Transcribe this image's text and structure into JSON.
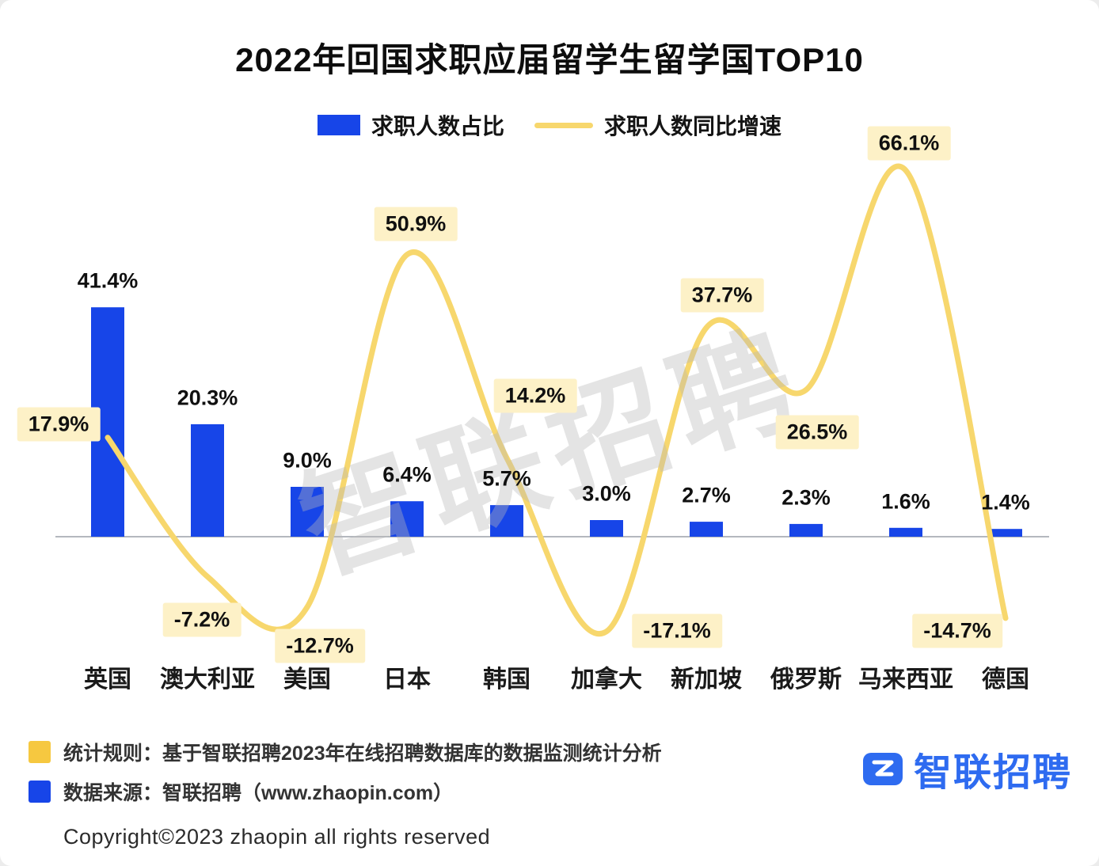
{
  "title": "2022年回国求职应届留学生留学国TOP10",
  "legend": {
    "bar_label": "求职人数占比",
    "line_label": "求职人数同比增速"
  },
  "chart_data": {
    "type": "bar+line",
    "categories": [
      "英国",
      "澳大利亚",
      "美国",
      "日本",
      "韩国",
      "加拿大",
      "新加坡",
      "俄罗斯",
      "马来西亚",
      "德国"
    ],
    "series": [
      {
        "name": "求职人数占比",
        "type": "bar",
        "values": [
          41.4,
          20.3,
          9.0,
          6.4,
          5.7,
          3.0,
          2.7,
          2.3,
          1.6,
          1.4
        ],
        "color": "#1745e8"
      },
      {
        "name": "求职人数同比增速",
        "type": "line",
        "values": [
          17.9,
          -7.2,
          -12.7,
          50.9,
          14.2,
          -17.1,
          37.7,
          26.5,
          66.1,
          -14.7
        ],
        "color": "#f7d76d"
      }
    ],
    "bar_labels": [
      "41.4%",
      "20.3%",
      "9.0%",
      "6.4%",
      "5.7%",
      "3.0%",
      "2.7%",
      "2.3%",
      "1.6%",
      "1.4%"
    ],
    "line_labels": [
      "17.9%",
      "-7.2%",
      "-12.7%",
      "50.9%",
      "14.2%",
      "-17.1%",
      "37.7%",
      "26.5%",
      "66.1%",
      "-14.7%"
    ],
    "baseline": 0,
    "grid": false,
    "legend_position": "top"
  },
  "watermark": "智联招聘",
  "footer": {
    "rule": "统计规则：基于智联招聘2023年在线招聘数据库的数据监测统计分析",
    "source": "数据来源：智联招聘（www.zhaopin.com）",
    "copyright": "Copyright©2023 zhaopin all rights reserved",
    "logo_text": "智联招聘"
  },
  "colors": {
    "bar": "#1745e8",
    "line": "#f7d76d",
    "label_bg": "#fdf1c7",
    "legend_square_yellow": "#f6c840",
    "logo_blue": "#2e6bf0",
    "axis": "#9ba1a9"
  }
}
